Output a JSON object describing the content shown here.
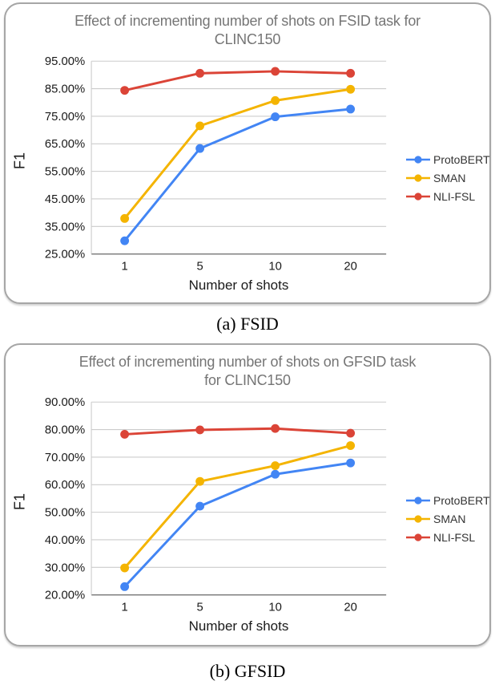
{
  "captions": {
    "a": "(a) FSID",
    "b": "(b) GFSID"
  },
  "chart_data": [
    {
      "type": "line",
      "title": "Effect of incrementing number of shots on FSID task for\nCLINC150",
      "xlabel": "Number of shots",
      "ylabel": "F1",
      "categories": [
        "1",
        "5",
        "10",
        "20"
      ],
      "series": [
        {
          "name": "ProtoBERT",
          "color": "#4285F4",
          "values": [
            29.8,
            63.3,
            74.8,
            77.6
          ]
        },
        {
          "name": "SMAN",
          "color": "#F4B400",
          "values": [
            37.9,
            71.5,
            80.7,
            84.8
          ]
        },
        {
          "name": "NLI-FSL",
          "color": "#DB4437",
          "values": [
            84.4,
            90.6,
            91.3,
            90.6
          ]
        }
      ],
      "ylim": [
        25,
        95
      ],
      "y_step": 10,
      "y_tick_format": "percent-2-decimals",
      "grid": true,
      "legend_position": "right",
      "colors": {
        "title_text": "#757575",
        "axis_text": "#1a1a1a",
        "gridline": "#cccccc",
        "axis_line": "#757575"
      }
    },
    {
      "type": "line",
      "title": "Effect of incrementing number of shots on GFSID task\nfor CLINC150",
      "xlabel": "Number of shots",
      "ylabel": "F1",
      "categories": [
        "1",
        "5",
        "10",
        "20"
      ],
      "series": [
        {
          "name": "ProtoBERT",
          "color": "#4285F4",
          "values": [
            23.0,
            52.2,
            63.8,
            67.9
          ]
        },
        {
          "name": "SMAN",
          "color": "#F4B400",
          "values": [
            29.8,
            61.2,
            66.9,
            74.2
          ]
        },
        {
          "name": "NLI-FSL",
          "color": "#DB4437",
          "values": [
            78.3,
            79.9,
            80.4,
            78.7
          ]
        }
      ],
      "ylim": [
        20,
        90
      ],
      "y_step": 10,
      "y_tick_format": "percent-2-decimals",
      "grid": true,
      "legend_position": "right",
      "colors": {
        "title_text": "#757575",
        "axis_text": "#1a1a1a",
        "gridline": "#cccccc",
        "axis_line": "#757575"
      }
    }
  ]
}
